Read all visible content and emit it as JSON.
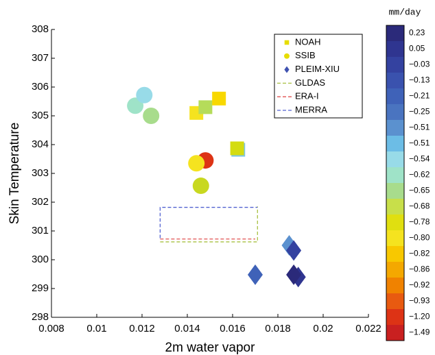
{
  "chart_data": {
    "type": "scatter",
    "x_label": "2m water vapor",
    "y_label": "Skin Temperature",
    "xlim": [
      0.008,
      0.022
    ],
    "xticks": [
      0.008,
      0.01,
      0.012,
      0.014,
      0.016,
      0.018,
      0.02,
      0.022
    ],
    "ylim": [
      298,
      308
    ],
    "yticks": [
      298,
      299,
      300,
      301,
      302,
      303,
      304,
      305,
      306,
      307,
      308
    ],
    "series": [
      {
        "name": "NOAH",
        "marker": "square",
        "color": "#e6dd00",
        "x": [
          0.0144,
          0.0148,
          0.0154,
          0.01625,
          0.0162
        ],
        "y": [
          305.1,
          305.3,
          305.6,
          303.82,
          303.87
        ],
        "colors": [
          "#f5e31f",
          "#b5dc5a",
          "#f8d800",
          "#7cc6e6",
          "#d4dc10"
        ]
      },
      {
        "name": "SSIB",
        "marker": "circle",
        "color": "#e6dd00",
        "x": [
          0.0117,
          0.0121,
          0.0124,
          0.0148,
          0.0144,
          0.0146
        ],
        "y": [
          305.35,
          305.72,
          305.0,
          303.45,
          303.35,
          302.57
        ],
        "colors": [
          "#9fe3c8",
          "#98dbe8",
          "#a8dc8c",
          "#dd3315",
          "#f5e31f",
          "#c8d820"
        ]
      },
      {
        "name": "PLEIM-XIU",
        "marker": "diamond",
        "color": "#3f52b0",
        "x": [
          0.017,
          0.0185,
          0.0187,
          0.0189,
          0.0187
        ],
        "y": [
          299.48,
          300.5,
          300.32,
          299.4,
          299.48
        ],
        "colors": [
          "#3f62b8",
          "#5b91cf",
          "#3442a0",
          "#2f3590",
          "#2b2a7a"
        ]
      }
    ],
    "references": [
      {
        "name": "GLDAS",
        "color": "#a8c040",
        "x": [
          0.0128,
          0.0171,
          0.0171
        ],
        "y": [
          300.62,
          300.62,
          301.85
        ]
      },
      {
        "name": "ERA-I",
        "color": "#e05050",
        "x": [
          0.0128,
          0.017
        ],
        "y": [
          300.72,
          300.72
        ]
      },
      {
        "name": "MERRA",
        "color": "#5060d0",
        "x": [
          0.0128,
          0.0128,
          0.0171
        ],
        "y": [
          300.75,
          301.82,
          301.82
        ]
      }
    ],
    "colorbar": {
      "title": "mm/day",
      "colors": [
        "#2b2a7a",
        "#2f3590",
        "#3442a0",
        "#3a52ae",
        "#3f62b8",
        "#4a74c0",
        "#5b91cf",
        "#6cbde6",
        "#98dbe8",
        "#9fe3c8",
        "#a8dc8c",
        "#c8df4a",
        "#e0df10",
        "#f5e31f",
        "#f8c800",
        "#f4a800",
        "#f08200",
        "#e85a10",
        "#dd3315",
        "#c92020"
      ],
      "labels": [
        "0.23",
        "0.05",
        "−0.03",
        "−0.13",
        "−0.21",
        "−0.25",
        "−0.51",
        "−0.51",
        "−0.54",
        "−0.62",
        "−0.65",
        "−0.68",
        "−0.78",
        "−0.80",
        "−0.82",
        "−0.86",
        "−0.92",
        "−0.93",
        "−1.20",
        "−1.49"
      ]
    }
  }
}
